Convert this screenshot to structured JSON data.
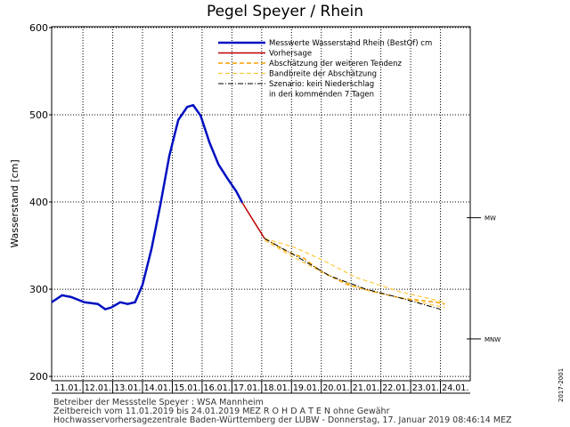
{
  "chart_data": {
    "type": "line",
    "title": "Pegel Speyer / Rhein",
    "y_label": "Wasserstand [cm]",
    "ylim": [
      195,
      601
    ],
    "yticks": [
      200,
      300,
      400,
      500,
      600
    ],
    "xlim": [
      10.95,
      25.0
    ],
    "xticks": [
      {
        "value": 11.5,
        "label": "11.01."
      },
      {
        "value": 12.5,
        "label": "12.01."
      },
      {
        "value": 13.5,
        "label": "13.01."
      },
      {
        "value": 14.5,
        "label": "14.01."
      },
      {
        "value": 15.5,
        "label": "15.01."
      },
      {
        "value": 16.5,
        "label": "16.01."
      },
      {
        "value": 17.5,
        "label": "17.01."
      },
      {
        "value": 18.5,
        "label": "18.01."
      },
      {
        "value": 19.5,
        "label": "19.01."
      },
      {
        "value": 20.5,
        "label": "20.01."
      },
      {
        "value": 21.5,
        "label": "21.01."
      },
      {
        "value": 22.5,
        "label": "22.01."
      },
      {
        "value": 23.5,
        "label": "23.01."
      },
      {
        "value": 24.5,
        "label": "24.01."
      }
    ],
    "xgrid": [
      12,
      13,
      14,
      15,
      16,
      17,
      18,
      19,
      20,
      21,
      22,
      23,
      24
    ],
    "grid": true,
    "legend": "upper right",
    "series": [
      {
        "name": "Messwerte Wasserstand Rhein (BestOf)   cm",
        "color": "#0010c0",
        "style": "solid",
        "width": 2.5,
        "x": [
          10.95,
          11.3,
          11.6,
          12.05,
          12.5,
          12.75,
          12.95,
          13.25,
          13.5,
          13.75,
          14.0,
          14.3,
          14.6,
          14.9,
          15.2,
          15.5,
          15.7,
          15.95,
          16.25,
          16.55,
          16.85,
          17.15,
          17.35
        ],
        "values": [
          285,
          293,
          291,
          285,
          283,
          277,
          279,
          285,
          283,
          285,
          305,
          346,
          397,
          453,
          494,
          509,
          511,
          499,
          468,
          443,
          427,
          412,
          399
        ]
      },
      {
        "name": "Vorhersage",
        "color": "#c00000",
        "style": "solid",
        "width": 1.5,
        "x": [
          17.35,
          17.75,
          18.1
        ],
        "values": [
          399,
          377,
          358
        ]
      },
      {
        "name": "Abschätzung der weiteren Tendenz",
        "color": "#f5a000",
        "style": "dashed",
        "width": 1.5,
        "x": [
          18.1,
          18.8,
          19.4,
          20.0,
          20.9,
          21.75,
          22.65,
          23.85,
          24.15
        ],
        "values": [
          358,
          344,
          336,
          320,
          305,
          297,
          290,
          285,
          283
        ]
      },
      {
        "name": "Bandbreite der Abschätzung",
        "color": "#ffc840",
        "style": "dashed",
        "width": 1.2,
        "x": [
          18.1,
          19.1,
          20.0,
          21.2,
          22.65,
          24.15
        ],
        "values": [
          358,
          348,
          334,
          313,
          297,
          285
        ],
        "lower": [
          356,
          336,
          320,
          302,
          290,
          279
        ]
      },
      {
        "name": "Szenario: kein Niederschlag",
        "color": "#000000",
        "style": "dashdot",
        "width": 1,
        "x": [
          18.1,
          19.1,
          20.3,
          21.5,
          22.65,
          24.0
        ],
        "values": [
          358,
          339,
          315,
          300,
          290,
          277
        ]
      }
    ],
    "legend_extra": "in den kommenden 7 Tagen",
    "reference_lines": [
      {
        "label": "MW",
        "value": 382
      },
      {
        "label": "MNW",
        "value": 243
      }
    ],
    "footer": [
      "Betreiber der Messstelle Speyer : WSA Mannheim",
      "Zeitbereich vom 11.01.2019 bis 24.01.2019    MEZ     R O H D A T E N  ohne Gewähr",
      "Hochwasservorhersagezentrale Baden-Württemberg der LUBW - Donnerstag, 17. Januar 2019 08:46:14 MEZ"
    ],
    "side_code": "2017-2001"
  }
}
